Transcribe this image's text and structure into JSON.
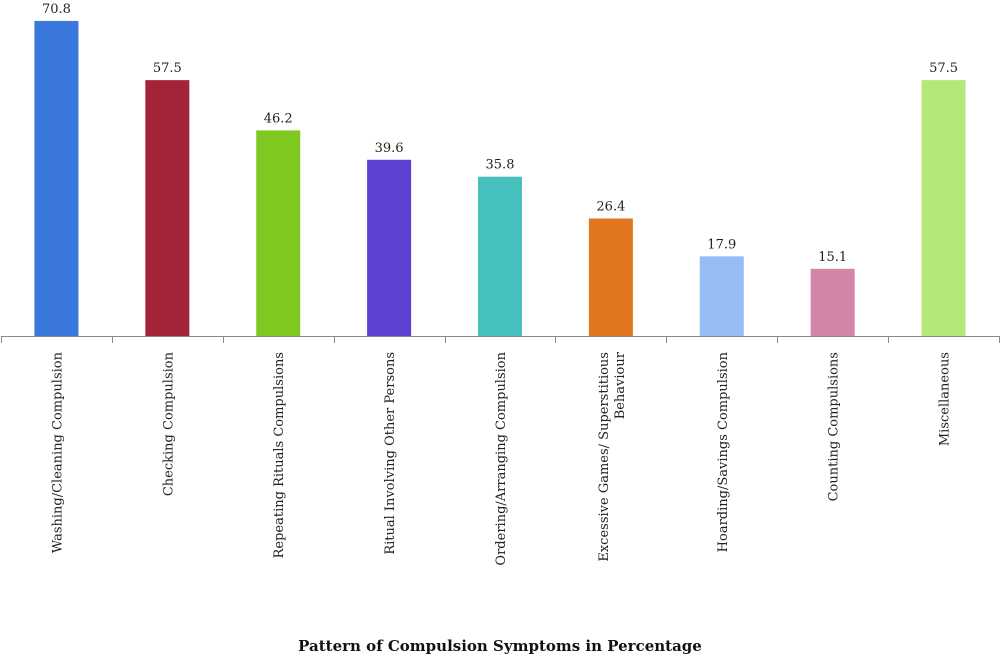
{
  "chart_data": {
    "type": "bar",
    "title": "Pattern of Compulsion Symptoms in Percentage",
    "xlabel": "",
    "ylabel": "",
    "ylim": [
      0,
      72
    ],
    "grid": false,
    "legend": "none",
    "categories": [
      [
        "Washing/Cleaning Compulsion"
      ],
      [
        "Checking Compulsion"
      ],
      [
        "Repeating Rituals Compulsions"
      ],
      [
        "Ritual Involving Other Persons"
      ],
      [
        "Ordering/Arranging Compulsion"
      ],
      [
        "Excessive Games/ Superstitious",
        "Behaviour"
      ],
      [
        "Hoarding/Savings Compulsion"
      ],
      [
        "Counting Compulsions"
      ],
      [
        "Miscellaneous"
      ]
    ],
    "values": [
      70.8,
      57.5,
      46.2,
      39.6,
      35.8,
      26.4,
      17.9,
      15.1,
      57.5
    ],
    "value_labels": [
      "70.8",
      "57.5",
      "46.2",
      "39.6",
      "35.8",
      "26.4",
      "17.9",
      "15.1",
      "57.5"
    ],
    "colors": [
      "#3a78dc",
      "#a32338",
      "#7ec820",
      "#5e40d2",
      "#46c0bd",
      "#e07720",
      "#95bcf3",
      "#d485a7",
      "#b2e97a"
    ]
  }
}
